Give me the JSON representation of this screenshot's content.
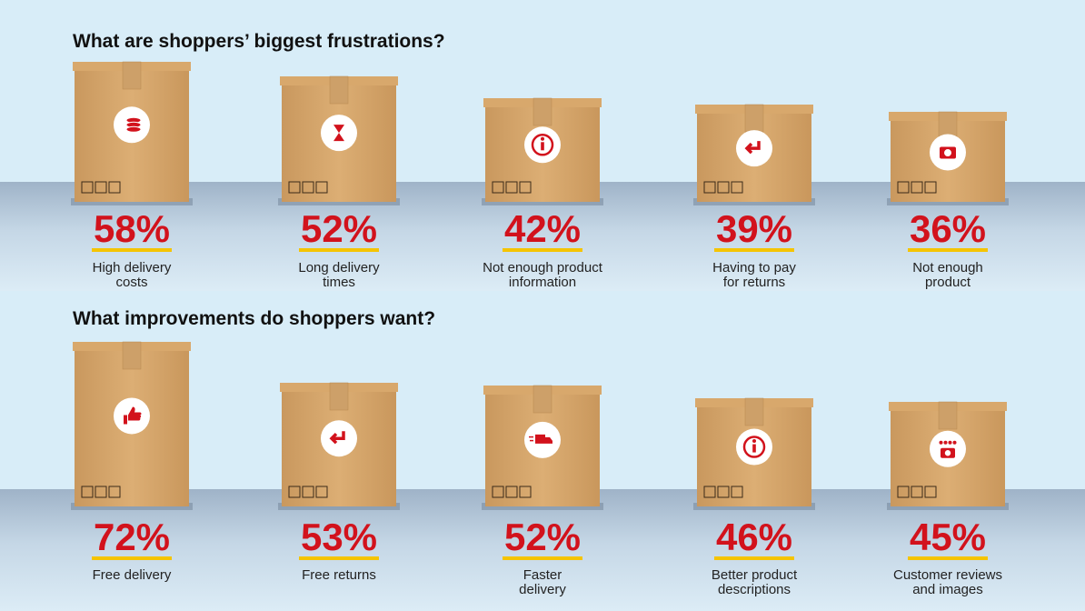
{
  "sections": [
    {
      "title": "What are shoppers’ biggest frustrations?",
      "items": [
        {
          "value": "58%",
          "label": [
            "High delivery",
            "costs"
          ]
        },
        {
          "value": "52%",
          "label": [
            "Long delivery",
            "times"
          ]
        },
        {
          "value": "42%",
          "label": [
            "Not enough product",
            "information"
          ]
        },
        {
          "value": "39%",
          "label": [
            "Having to pay",
            "for returns"
          ]
        },
        {
          "value": "36%",
          "label": [
            "Not enough",
            "product"
          ]
        }
      ]
    },
    {
      "title": "What improvements do shoppers want?",
      "items": [
        {
          "value": "72%",
          "label": [
            "Free delivery"
          ]
        },
        {
          "value": "53%",
          "label": [
            "Free returns"
          ]
        },
        {
          "value": "52%",
          "label": [
            "Faster",
            "delivery"
          ]
        },
        {
          "value": "46%",
          "label": [
            "Better product",
            "descriptions"
          ]
        },
        {
          "value": "45%",
          "label": [
            "Customer reviews",
            "and images"
          ]
        }
      ]
    }
  ]
}
